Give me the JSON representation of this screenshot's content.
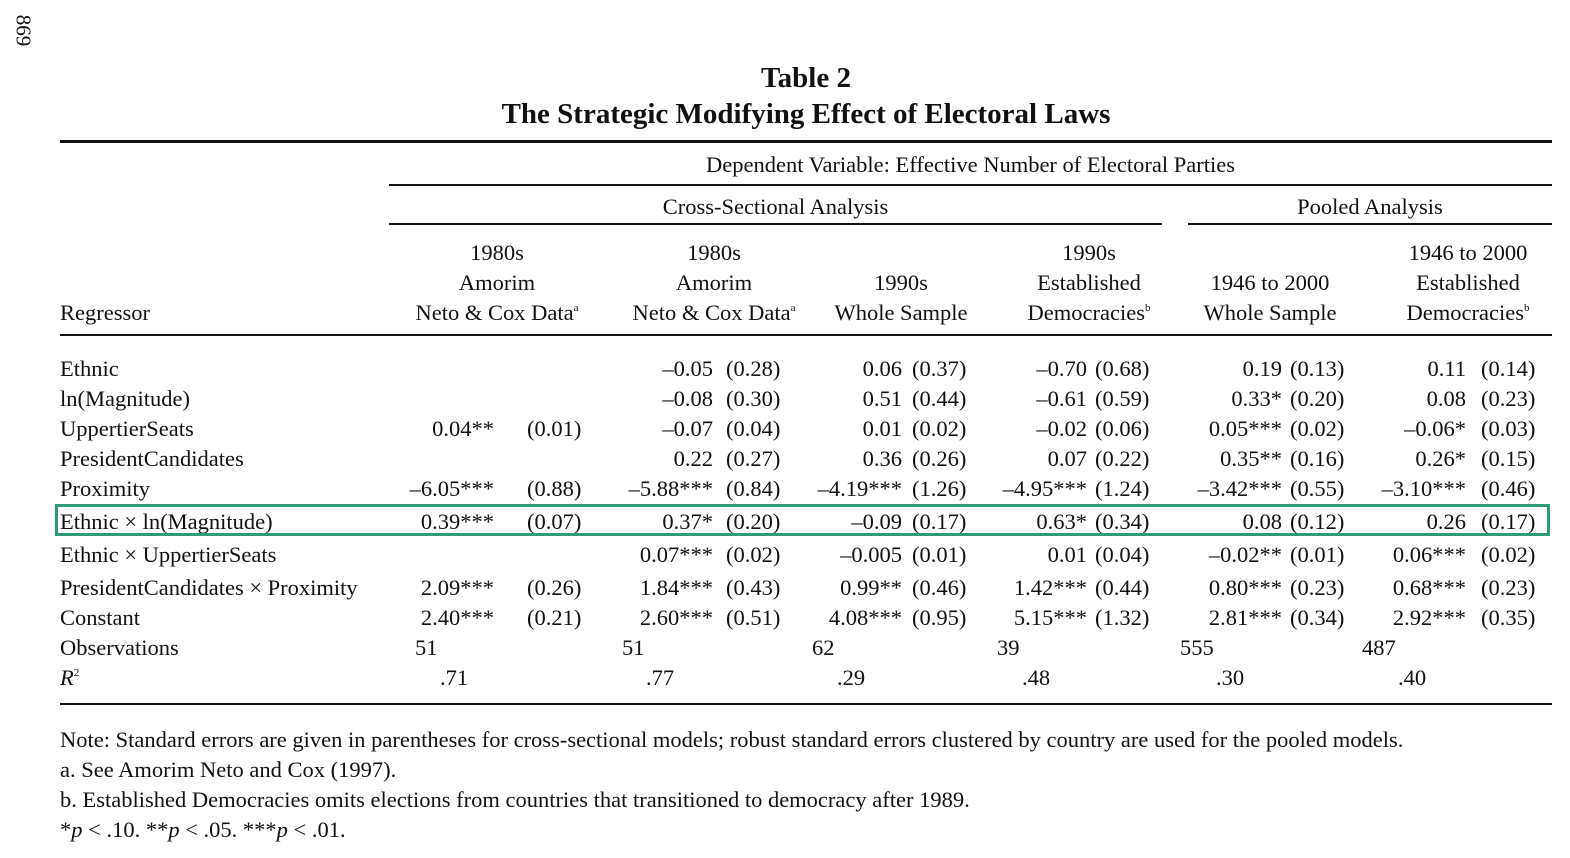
{
  "page_number": "869",
  "title": "Table 2",
  "subtitle": "The Strategic Modifying Effect of Electoral Laws",
  "dependent_variable": "Dependent Variable: Effective Number of Electoral Parties",
  "groups": {
    "cross_sectional": "Cross-Sectional Analysis",
    "pooled": "Pooled Analysis"
  },
  "regressor_header": "Regressor",
  "columns": [
    {
      "lines": [
        "1980s",
        "Amorim",
        "Neto & Cox Data"
      ],
      "sup": "a"
    },
    {
      "lines": [
        "1980s",
        "Amorim",
        "Neto & Cox Data"
      ],
      "sup": "a"
    },
    {
      "lines": [
        "",
        "1990s",
        "Whole Sample"
      ],
      "sup": ""
    },
    {
      "lines": [
        "1990s",
        "Established",
        "Democracies"
      ],
      "sup": "b"
    },
    {
      "lines": [
        "",
        "1946 to 2000",
        "Whole Sample"
      ],
      "sup": ""
    },
    {
      "lines": [
        "1946 to 2000",
        "Established",
        "Democracies"
      ],
      "sup": "b"
    }
  ],
  "rows": [
    {
      "label": "Ethnic",
      "highlight": false,
      "cells": [
        [
          "",
          ""
        ],
        [
          "–0.05",
          "(0.28)"
        ],
        [
          "0.06",
          "(0.37)"
        ],
        [
          "–0.70",
          "(0.68)"
        ],
        [
          "0.19",
          "(0.13)"
        ],
        [
          "0.11",
          "(0.14)"
        ]
      ]
    },
    {
      "label": "ln(Magnitude)",
      "highlight": false,
      "cells": [
        [
          "",
          ""
        ],
        [
          "–0.08",
          "(0.30)"
        ],
        [
          "0.51",
          "(0.44)"
        ],
        [
          "–0.61",
          "(0.59)"
        ],
        [
          "0.33*",
          "(0.20)"
        ],
        [
          "0.08",
          "(0.23)"
        ]
      ]
    },
    {
      "label": "UppertierSeats",
      "highlight": false,
      "cells": [
        [
          "0.04**",
          "(0.01)"
        ],
        [
          "–0.07",
          "(0.04)"
        ],
        [
          "0.01",
          "(0.02)"
        ],
        [
          "–0.02",
          "(0.06)"
        ],
        [
          "0.05***",
          "(0.02)"
        ],
        [
          "–0.06*",
          "(0.03)"
        ]
      ]
    },
    {
      "label": "PresidentCandidates",
      "highlight": false,
      "cells": [
        [
          "",
          ""
        ],
        [
          "0.22",
          "(0.27)"
        ],
        [
          "0.36",
          "(0.26)"
        ],
        [
          "0.07",
          "(0.22)"
        ],
        [
          "0.35**",
          "(0.16)"
        ],
        [
          "0.26*",
          "(0.15)"
        ]
      ]
    },
    {
      "label": "Proximity",
      "highlight": false,
      "cells": [
        [
          "–6.05***",
          "(0.88)"
        ],
        [
          "–5.88***",
          "(0.84)"
        ],
        [
          "–4.19***",
          "(1.26)"
        ],
        [
          "–4.95***",
          "(1.24)"
        ],
        [
          "–3.42***",
          "(0.55)"
        ],
        [
          "–3.10***",
          "(0.46)"
        ]
      ]
    },
    {
      "label": "Ethnic × ln(Magnitude)",
      "highlight": true,
      "cells": [
        [
          "0.39***",
          "(0.07)"
        ],
        [
          "0.37*",
          "(0.20)"
        ],
        [
          "–0.09",
          "(0.17)"
        ],
        [
          "0.63*",
          "(0.34)"
        ],
        [
          "0.08",
          "(0.12)"
        ],
        [
          "0.26",
          "(0.17)"
        ]
      ]
    },
    {
      "label": "Ethnic × UppertierSeats",
      "highlight": false,
      "cells": [
        [
          "",
          ""
        ],
        [
          "0.07***",
          "(0.02)"
        ],
        [
          "–0.005",
          "(0.01)"
        ],
        [
          "0.01",
          "(0.04)"
        ],
        [
          "–0.02**",
          "(0.01)"
        ],
        [
          "0.06***",
          "(0.02)"
        ]
      ]
    },
    {
      "label": "PresidentCandidates × Proximity",
      "highlight": false,
      "cells": [
        [
          "2.09***",
          "(0.26)"
        ],
        [
          "1.84***",
          "(0.43)"
        ],
        [
          "0.99**",
          "(0.46)"
        ],
        [
          "1.42***",
          "(0.44)"
        ],
        [
          "0.80***",
          "(0.23)"
        ],
        [
          "0.68***",
          "(0.23)"
        ]
      ]
    },
    {
      "label": "Constant",
      "highlight": false,
      "cells": [
        [
          "2.40***",
          "(0.21)"
        ],
        [
          "2.60***",
          "(0.51)"
        ],
        [
          "4.08***",
          "(0.95)"
        ],
        [
          "5.15***",
          "(1.32)"
        ],
        [
          "2.81***",
          "(0.34)"
        ],
        [
          "2.92***",
          "(0.35)"
        ]
      ]
    }
  ],
  "observations": {
    "label": "Observations",
    "values": [
      "51",
      "51",
      "62",
      "39",
      "555",
      "487"
    ]
  },
  "r2": {
    "label": "R",
    "sup": "2",
    "values": [
      ".71",
      ".77",
      ".29",
      ".48",
      ".30",
      ".40"
    ]
  },
  "notes": [
    "Note: Standard errors are given in parentheses for cross-sectional models; robust standard errors clustered by country are used for the pooled models.",
    "a. See Amorim Neto and Cox (1997).",
    "b. Established Democracies omits elections from countries that transitioned to democracy after 1989."
  ],
  "significance": [
    {
      "prefix": "*",
      "p": "p",
      "suffix": " < .10. "
    },
    {
      "prefix": "**",
      "p": "p",
      "suffix": " < .05. "
    },
    {
      "prefix": "***",
      "p": "p",
      "suffix": " < .01."
    }
  ],
  "colors": {
    "highlight": "#2e9a78",
    "text": "#111111"
  }
}
